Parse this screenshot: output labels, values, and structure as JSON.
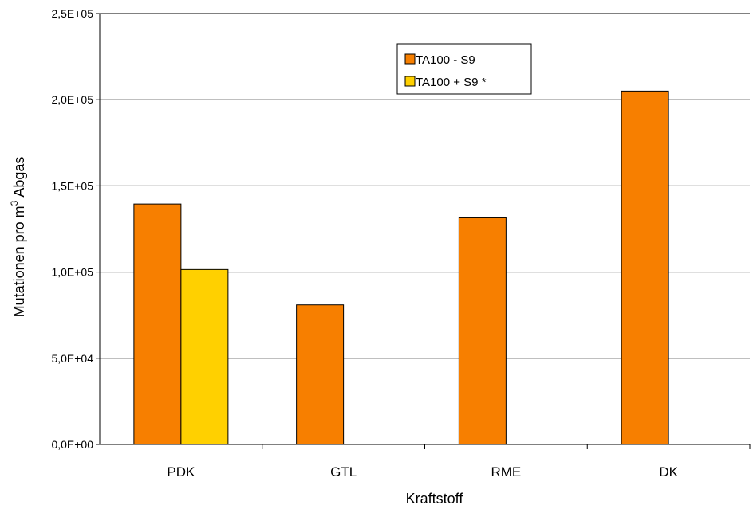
{
  "chart_data": {
    "type": "bar",
    "categories": [
      "PDK",
      "GTL",
      "RME",
      "DK"
    ],
    "series": [
      {
        "name": "TA100 - S9",
        "values": [
          139500,
          81000,
          131500,
          205000
        ],
        "color": "#F77F00"
      },
      {
        "name": "TA100 + S9 *",
        "values": [
          101500,
          null,
          null,
          null
        ],
        "color": "#FFD000"
      }
    ],
    "xlabel": "Kraftstoff",
    "ylabel": "Mutationen pro m³ Abgas",
    "ylabel_parts": {
      "pre": "Mutationen pro m",
      "sup": "3",
      "post": " Abgas"
    },
    "ylim": [
      0,
      250000
    ],
    "yticks": [
      0,
      50000,
      100000,
      150000,
      200000,
      250000
    ],
    "ytick_labels": [
      "0,0E+00",
      "5,0E+04",
      "1,0E+05",
      "1,5E+05",
      "2,0E+05",
      "2,5E+05"
    ],
    "grid": true,
    "legend_position": "top-center"
  }
}
